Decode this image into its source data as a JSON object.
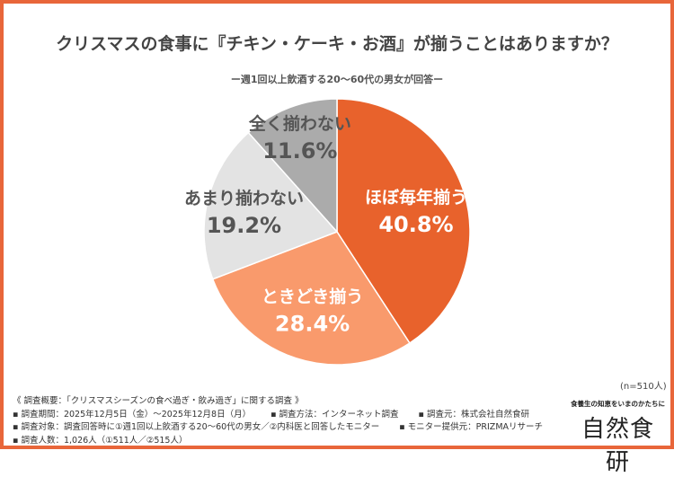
{
  "title": "クリスマスの食事に『チキン・ケーキ・お酒』が揃うことはありますか？",
  "subtitle": "ー週1回以上飲酒する20〜60代の男女が回答ー",
  "sample_size": "(n=510人)",
  "chart_data": {
    "type": "pie",
    "title": "クリスマスの食事に『チキン・ケーキ・お酒』が揃うことはありますか？",
    "start": "top",
    "direction": "clockwise",
    "slices": [
      {
        "label": "ほぼ毎年揃う",
        "value": 40.8,
        "display": "40.8%",
        "color": "#E8622C",
        "text_color": "#FFFFFF"
      },
      {
        "label": "ときどき揃う",
        "value": 28.4,
        "display": "28.4%",
        "color": "#F99A6C",
        "text_color": "#FFFFFF"
      },
      {
        "label": "あまり揃わない",
        "value": 19.2,
        "display": "19.2%",
        "color": "#E3E3E3",
        "text_color": "#555555"
      },
      {
        "label": "全く揃わない",
        "value": 11.6,
        "display": "11.6%",
        "color": "#ABABAB",
        "text_color": "#555555"
      }
    ]
  },
  "notes": {
    "overview": "《 調査概要：「クリスマスシーズンの食べ過ぎ・飲み過ぎ」に関する調査 》",
    "period": "▪ 調査期間：2025年12月5日（金）〜2025年12月8日（月）",
    "method": "▪ 調査方法：インターネット調査",
    "source": "▪ 調査元：株式会社自然食研",
    "target": "▪ 調査対象：調査回答時に①週1回以上飲酒する20〜60代の男女／②内科医と回答したモニター",
    "provider": "▪ モニター提供元：PRIZMAリサーチ",
    "count": "▪ 調査人数：1,026人（①511人／②515人）"
  },
  "brand": {
    "tagline": "食養生の知恵をいまのかたちに",
    "logo": "自然食研"
  },
  "colors": {
    "frame": "#E8663A"
  }
}
